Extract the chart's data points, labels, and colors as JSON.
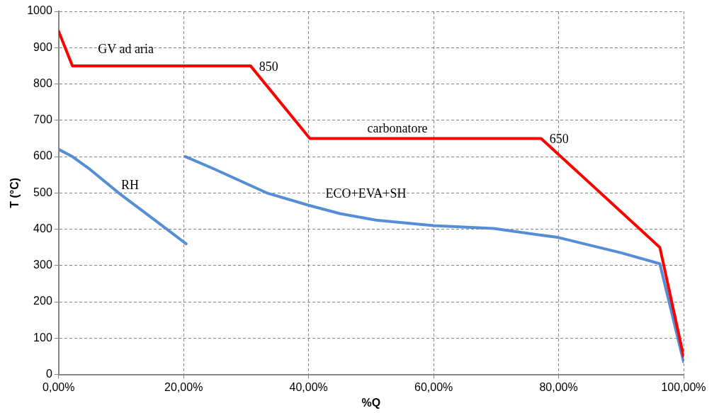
{
  "chart_data": {
    "type": "line",
    "xlabel": "%Q",
    "ylabel": "T (°C)",
    "xlim": [
      0,
      100
    ],
    "ylim": [
      0,
      1000
    ],
    "xticks": [
      {
        "value": 0,
        "label": "0,00%"
      },
      {
        "value": 20,
        "label": "20,00%"
      },
      {
        "value": 40,
        "label": "40,00%"
      },
      {
        "value": 60,
        "label": "60,00%"
      },
      {
        "value": 80,
        "label": "80,00%"
      },
      {
        "value": 100,
        "label": "100,00%"
      }
    ],
    "yticks": [
      0,
      100,
      200,
      300,
      400,
      500,
      600,
      700,
      800,
      900,
      1000
    ],
    "grid": true,
    "legend": false,
    "marker": "none",
    "line_style": "solid",
    "series": [
      {
        "color": "#ff0000",
        "x": [
          0,
          2.2,
          30.7,
          40.2,
          77.2,
          96.2,
          100
        ],
        "values": [
          945,
          850,
          850,
          650,
          650,
          350,
          50
        ]
      },
      {
        "color": "#558ed5",
        "x": [
          0,
          2.2,
          5,
          9.6,
          15,
          20.4
        ],
        "values": [
          620,
          600,
          565,
          500,
          430,
          360
        ]
      },
      {
        "color": "#558ed5",
        "x": [
          20.3,
          25,
          33.3,
          40,
          45,
          50.8,
          60,
          69.6,
          80,
          90,
          96.2,
          100
        ],
        "values": [
          600,
          565,
          500,
          466,
          443,
          425,
          410,
          402,
          377,
          335,
          305,
          35
        ]
      }
    ],
    "annotations": [
      "GV ad aria",
      {
        "text": "850",
        "x": 30.7,
        "y": 850
      },
      "carbonatore",
      {
        "text": "650",
        "x": 77.2,
        "y": 650
      },
      "RH",
      "ECO+EVA+SH"
    ]
  }
}
